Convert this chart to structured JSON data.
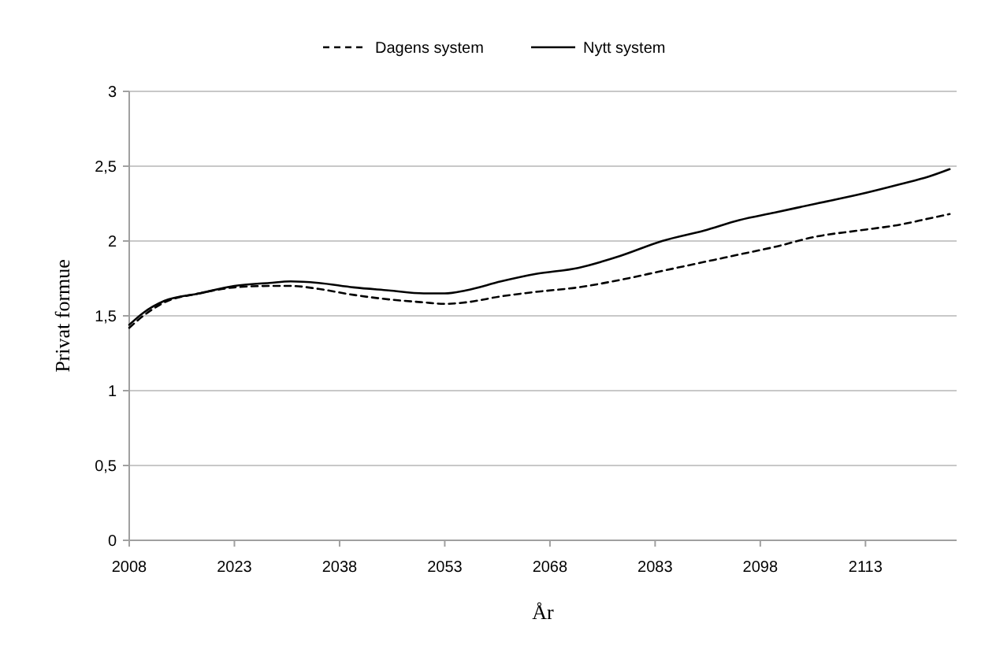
{
  "chart_data": {
    "type": "line",
    "xlabel": "År",
    "ylabel": "Privat formue",
    "x": [
      2008,
      2010,
      2013,
      2018,
      2023,
      2028,
      2031,
      2035,
      2040,
      2045,
      2050,
      2053,
      2056,
      2061,
      2066,
      2072,
      2078,
      2084,
      2090,
      2095,
      2100,
      2106,
      2112,
      2118,
      2122,
      2125
    ],
    "series": [
      {
        "name": "Dagens system",
        "color": "#000000",
        "line_style": "dashed",
        "values": [
          1.42,
          1.5,
          1.59,
          1.65,
          1.69,
          1.7,
          1.7,
          1.68,
          1.64,
          1.61,
          1.59,
          1.58,
          1.59,
          1.63,
          1.66,
          1.69,
          1.74,
          1.8,
          1.86,
          1.91,
          1.96,
          2.03,
          2.07,
          2.11,
          2.15,
          2.18
        ]
      },
      {
        "name": "Nytt system",
        "color": "#000000",
        "line_style": "solid",
        "values": [
          1.44,
          1.52,
          1.6,
          1.65,
          1.7,
          1.72,
          1.73,
          1.72,
          1.69,
          1.67,
          1.65,
          1.65,
          1.67,
          1.73,
          1.78,
          1.82,
          1.9,
          2.0,
          2.07,
          2.14,
          2.19,
          2.25,
          2.31,
          2.38,
          2.43,
          2.48
        ]
      }
    ],
    "xlim": [
      2008,
      2126
    ],
    "xticks": [
      2008,
      2023,
      2038,
      2053,
      2068,
      2083,
      2098,
      2113
    ],
    "ylim": [
      0,
      3
    ],
    "yticks": [
      0,
      {
        "value": 0.5,
        "label": "0,5"
      },
      1,
      {
        "value": 1.5,
        "label": "1,5"
      },
      2,
      {
        "value": 2.5,
        "label": "2,5"
      },
      3
    ],
    "grid": "y",
    "legend": "top",
    "marker": "none"
  }
}
